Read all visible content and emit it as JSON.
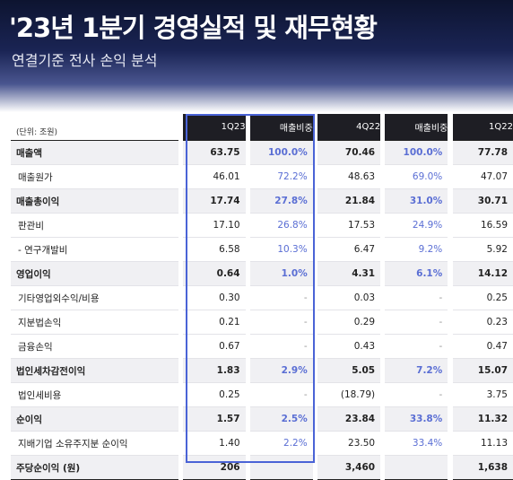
{
  "title": "'23년 1분기 경영실적 및 재무현황",
  "subtitle": "연결기준 전사 손익 분석",
  "unit": "(단위: 조원)",
  "columns": [
    "1Q23",
    "매출비중",
    "4Q22",
    "매출비중",
    "1Q22"
  ],
  "rows": [
    {
      "label": "매출액",
      "bold": true,
      "v": [
        "63.75",
        "100.0%",
        "70.46",
        "100.0%",
        "77.78"
      ]
    },
    {
      "label": "매출원가",
      "bold": false,
      "v": [
        "46.01",
        "72.2%",
        "48.63",
        "69.0%",
        "47.07"
      ]
    },
    {
      "label": "매출총이익",
      "bold": true,
      "v": [
        "17.74",
        "27.8%",
        "21.84",
        "31.0%",
        "30.71"
      ]
    },
    {
      "label": "판관비",
      "bold": false,
      "v": [
        "17.10",
        "26.8%",
        "17.53",
        "24.9%",
        "16.59"
      ]
    },
    {
      "label": "- 연구개발비",
      "bold": false,
      "v": [
        "6.58",
        "10.3%",
        "6.47",
        "9.2%",
        "5.92"
      ]
    },
    {
      "label": "영업이익",
      "bold": true,
      "v": [
        "0.64",
        "1.0%",
        "4.31",
        "6.1%",
        "14.12"
      ]
    },
    {
      "label": "기타영업외수익/비용",
      "bold": false,
      "v": [
        "0.30",
        "-",
        "0.03",
        "-",
        "0.25"
      ]
    },
    {
      "label": "지분법손익",
      "bold": false,
      "v": [
        "0.21",
        "-",
        "0.29",
        "-",
        "0.23"
      ]
    },
    {
      "label": "금융손익",
      "bold": false,
      "v": [
        "0.67",
        "-",
        "0.43",
        "-",
        "0.47"
      ]
    },
    {
      "label": "법인세차감전이익",
      "bold": true,
      "v": [
        "1.83",
        "2.9%",
        "5.05",
        "7.2%",
        "15.07"
      ]
    },
    {
      "label": "법인세비용",
      "bold": false,
      "v": [
        "0.25",
        "-",
        "(18.79)",
        "-",
        "3.75"
      ]
    },
    {
      "label": "순이익",
      "bold": true,
      "v": [
        "1.57",
        "2.5%",
        "23.84",
        "33.8%",
        "11.32"
      ]
    },
    {
      "label": "지배기업 소유주지분 순이익",
      "bold": false,
      "v": [
        "1.40",
        "2.2%",
        "23.50",
        "33.4%",
        "11.13"
      ]
    },
    {
      "label": "주당순이익 (원)",
      "bold": true,
      "v": [
        "206",
        "",
        "3,460",
        "",
        "1,638"
      ]
    }
  ]
}
